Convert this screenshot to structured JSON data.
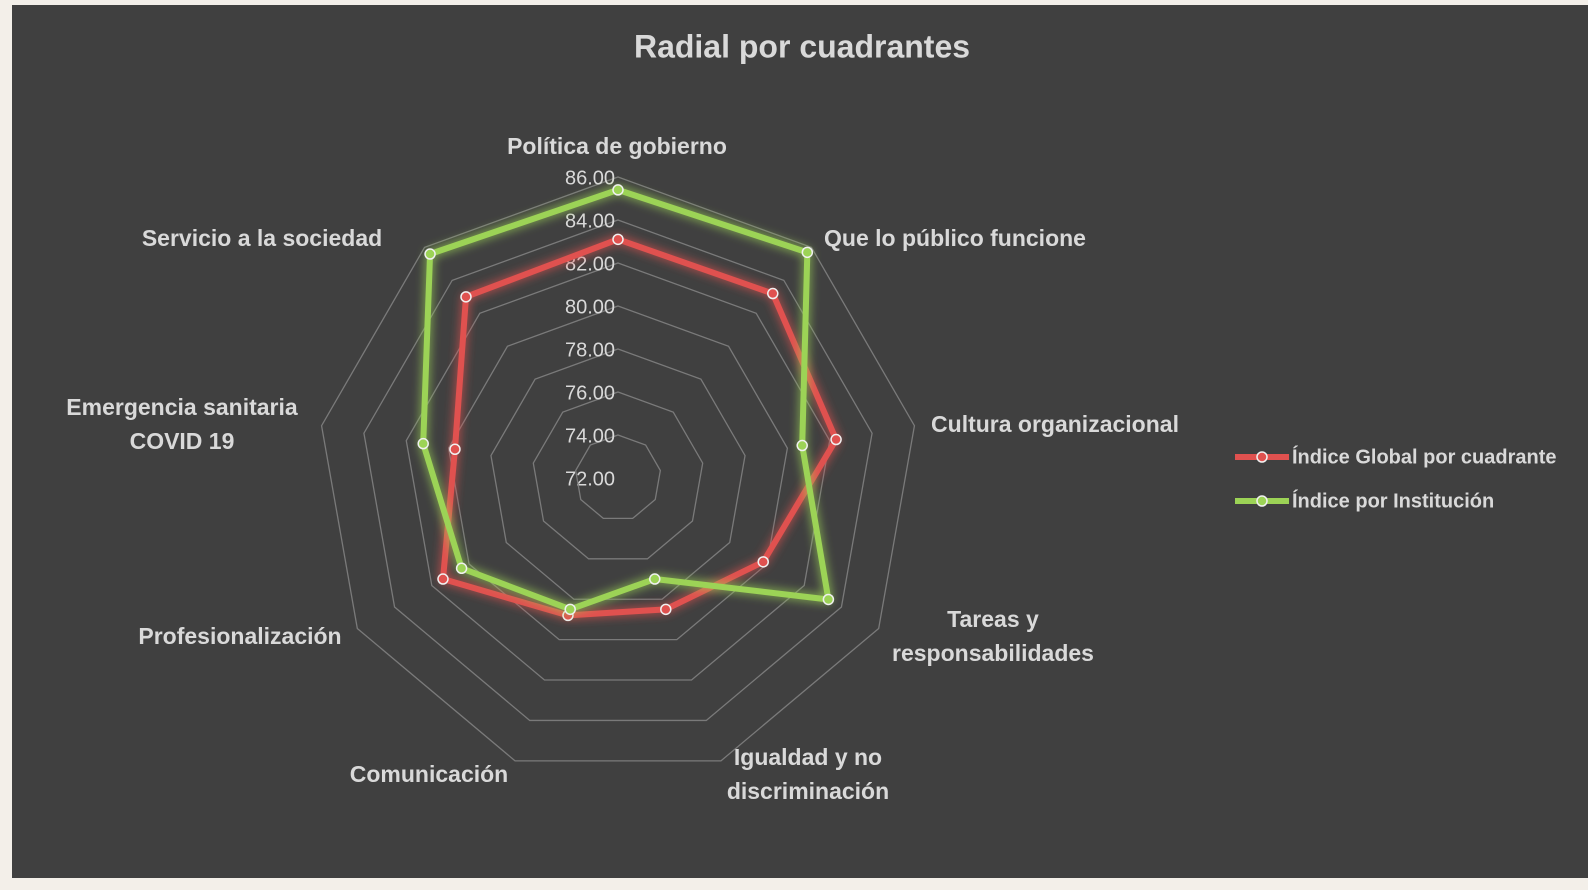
{
  "chart_data": {
    "type": "radar",
    "title": "Radial por cuadrantes",
    "categories": [
      "Política de gobierno",
      "Que lo público funcione",
      "Cultura organizacional",
      "Tareas y responsabilidades",
      "Igualdad y no discriminación",
      "Comunicación",
      "Profesionalización",
      "Emergencia sanitaria COVID 19",
      "Servicio a la sociedad"
    ],
    "series": [
      {
        "name": "Índice Global por cuadrante",
        "color": "#e0514f",
        "values": [
          83.1,
          83.2,
          82.3,
          79.8,
          78.5,
          78.8,
          81.4,
          79.7,
          83.0
        ]
      },
      {
        "name": "Índice por Institución",
        "color": "#9cd356",
        "values": [
          85.4,
          85.7,
          80.7,
          83.3,
          77.0,
          78.5,
          80.4,
          81.2,
          85.6
        ]
      }
    ],
    "ylim": [
      72,
      86
    ],
    "yticks": [
      {
        "value": 72,
        "label": "72.00"
      },
      {
        "value": 74,
        "label": "74.00"
      },
      {
        "value": 76,
        "label": "76.00"
      },
      {
        "value": 78,
        "label": "78.00"
      },
      {
        "value": 80,
        "label": "80.00"
      },
      {
        "value": 82,
        "label": "82.00"
      },
      {
        "value": 84,
        "label": "84.00"
      },
      {
        "value": 86,
        "label": "86.00"
      }
    ],
    "grid": true,
    "legend": "right"
  }
}
